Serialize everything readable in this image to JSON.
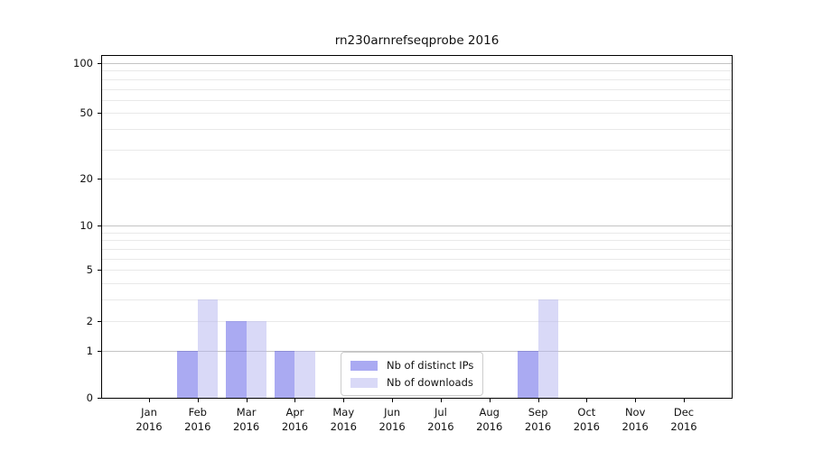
{
  "title": "rn230arnrefseqprobe 2016",
  "chart_data": {
    "type": "bar",
    "title": "rn230arnrefseqprobe 2016",
    "categories": [
      "Jan",
      "Feb",
      "Mar",
      "Apr",
      "May",
      "Jun",
      "Jul",
      "Aug",
      "Sep",
      "Oct",
      "Nov",
      "Dec"
    ],
    "x_sublabel": "2016",
    "series": [
      {
        "name": "Nb of distinct IPs",
        "swatch": "#aaaaf2",
        "fill": "rgba(85,85,229,0.5)",
        "values": [
          0,
          1,
          2,
          1,
          0,
          0,
          0,
          0,
          1,
          0,
          0,
          0
        ]
      },
      {
        "name": "Nb of downloads",
        "swatch": "#d9d9f7",
        "fill": "rgba(179,179,239,0.5)",
        "values": [
          0,
          3,
          2,
          1,
          0,
          0,
          0,
          0,
          3,
          0,
          0,
          0
        ]
      }
    ],
    "yscale": "log(1+y)",
    "ylim": [
      0,
      111
    ],
    "y_tick_values": [
      0,
      1,
      2,
      5,
      10,
      20,
      50,
      100
    ],
    "y_tick_labels": [
      "0",
      "1",
      "2",
      "5",
      "10",
      "20",
      "50",
      "100"
    ],
    "major_gridlines": [
      1,
      10,
      100
    ],
    "minor_gridlines": [
      2,
      3,
      4,
      5,
      6,
      7,
      8,
      9,
      20,
      30,
      40,
      50,
      60,
      70,
      80,
      90
    ],
    "grid": true,
    "legend_position": "lower-center-inside"
  },
  "colors": {
    "background": "#ffffff",
    "axis": "#000000",
    "text": "#111111",
    "major_grid": "#c4c4c4",
    "minor_grid": "#e9e9e9",
    "legend_border": "#cccccc"
  }
}
